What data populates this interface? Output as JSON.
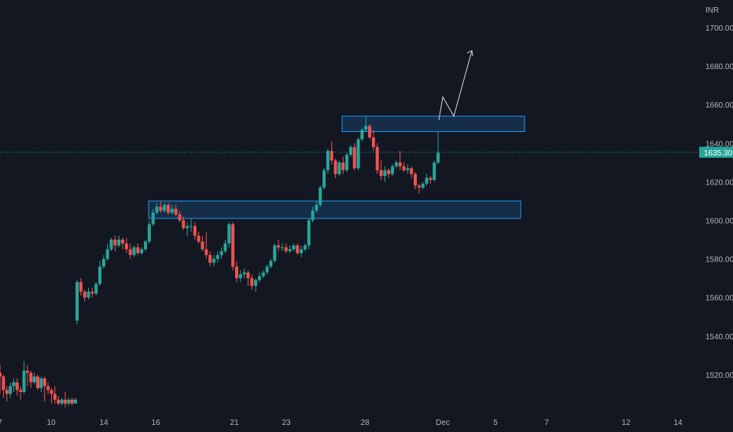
{
  "currency": "INR",
  "last_price": "1635.30",
  "colors": {
    "background": "#131722",
    "up": "#26a69a",
    "down": "#ef5350",
    "zone": "#2196f3",
    "price_line": "#26a69a",
    "arrow": "#d1d4dc"
  },
  "chart_data": {
    "type": "candlestick",
    "y_axis_ticks": [
      "1700.00",
      "1680.00",
      "1660.00",
      "1640.00",
      "1620.00",
      "1600.00",
      "1580.00",
      "1560.00",
      "1540.00",
      "1520.00"
    ],
    "x_axis_ticks": [
      "7",
      "10",
      "14",
      "16",
      "21",
      "23",
      "28",
      "Dec",
      "5",
      "7",
      "12",
      "14"
    ],
    "y_range": [
      1502,
      1714
    ],
    "zones": [
      {
        "name": "resistance-zone",
        "top": 1654,
        "bottom": 1646
      },
      {
        "name": "support-zone",
        "top": 1610,
        "bottom": 1601
      }
    ],
    "projection_path": [
      1652,
      1664,
      1654,
      1688
    ],
    "candles": [
      [
        1521,
        1519,
        1525,
        1510
      ],
      [
        1519,
        1512,
        1520,
        1508
      ],
      [
        1512,
        1510,
        1514,
        1506
      ],
      [
        1510,
        1514,
        1516,
        1508
      ],
      [
        1514,
        1516,
        1518,
        1511
      ],
      [
        1516,
        1512,
        1518,
        1509
      ],
      [
        1512,
        1511,
        1514,
        1507
      ],
      [
        1511,
        1522,
        1527,
        1510
      ],
      [
        1522,
        1521,
        1525,
        1514
      ],
      [
        1521,
        1516,
        1522,
        1513
      ],
      [
        1516,
        1519,
        1521,
        1515
      ],
      [
        1519,
        1513,
        1520,
        1512
      ],
      [
        1513,
        1518,
        1519,
        1511
      ],
      [
        1518,
        1514,
        1519,
        1506
      ],
      [
        1514,
        1512,
        1516,
        1510
      ],
      [
        1512,
        1510,
        1513,
        1505
      ],
      [
        1510,
        1507,
        1514,
        1505
      ],
      [
        1507,
        1505,
        1509,
        1504
      ],
      [
        1505,
        1507,
        1508,
        1504
      ],
      [
        1507,
        1505,
        1511,
        1503
      ],
      [
        1505,
        1507,
        1508,
        1504
      ],
      [
        1507,
        1505,
        1508,
        1504
      ],
      [
        1505,
        1507,
        1508,
        1505
      ],
      [
        1548,
        1568,
        1569,
        1546
      ],
      [
        1568,
        1563,
        1570,
        1561
      ],
      [
        1563,
        1560,
        1564,
        1558
      ],
      [
        1560,
        1563,
        1565,
        1559
      ],
      [
        1563,
        1562,
        1565,
        1560
      ],
      [
        1562,
        1567,
        1568,
        1561
      ],
      [
        1567,
        1576,
        1579,
        1566
      ],
      [
        1576,
        1580,
        1582,
        1575
      ],
      [
        1580,
        1585,
        1588,
        1579
      ],
      [
        1585,
        1590,
        1591,
        1584
      ],
      [
        1590,
        1587,
        1592,
        1584
      ],
      [
        1587,
        1590,
        1592,
        1586
      ],
      [
        1590,
        1588,
        1591,
        1585
      ],
      [
        1588,
        1585,
        1591,
        1583
      ],
      [
        1585,
        1582,
        1588,
        1580
      ],
      [
        1582,
        1586,
        1587,
        1581
      ],
      [
        1586,
        1583,
        1588,
        1582
      ],
      [
        1583,
        1585,
        1586,
        1582
      ],
      [
        1585,
        1589,
        1590,
        1584
      ],
      [
        1589,
        1598,
        1600,
        1588
      ],
      [
        1598,
        1604,
        1606,
        1597
      ],
      [
        1604,
        1607,
        1609,
        1603
      ],
      [
        1607,
        1605,
        1610,
        1604
      ],
      [
        1605,
        1608,
        1609,
        1604
      ],
      [
        1608,
        1604,
        1609,
        1603
      ],
      [
        1604,
        1606,
        1608,
        1603
      ],
      [
        1606,
        1603,
        1608,
        1602
      ],
      [
        1603,
        1600,
        1605,
        1599
      ],
      [
        1600,
        1596,
        1602,
        1595
      ],
      [
        1596,
        1597,
        1599,
        1592
      ],
      [
        1597,
        1597,
        1601,
        1594
      ],
      [
        1597,
        1592,
        1599,
        1590
      ],
      [
        1592,
        1589,
        1594,
        1588
      ],
      [
        1589,
        1585,
        1592,
        1584
      ],
      [
        1585,
        1582,
        1594,
        1580
      ],
      [
        1582,
        1578,
        1584,
        1576
      ],
      [
        1578,
        1580,
        1582,
        1576
      ],
      [
        1580,
        1582,
        1584,
        1578
      ],
      [
        1582,
        1584,
        1586,
        1580
      ],
      [
        1584,
        1588,
        1590,
        1583
      ],
      [
        1588,
        1598,
        1599,
        1586
      ],
      [
        1598,
        1576,
        1599,
        1574
      ],
      [
        1576,
        1570,
        1579,
        1568
      ],
      [
        1570,
        1572,
        1574,
        1568
      ],
      [
        1572,
        1573,
        1575,
        1570
      ],
      [
        1573,
        1570,
        1574,
        1566
      ],
      [
        1570,
        1566,
        1572,
        1564
      ],
      [
        1566,
        1569,
        1570,
        1563
      ],
      [
        1569,
        1571,
        1573,
        1568
      ],
      [
        1571,
        1573,
        1574,
        1570
      ],
      [
        1573,
        1576,
        1577,
        1572
      ],
      [
        1576,
        1579,
        1580,
        1575
      ],
      [
        1579,
        1587,
        1588,
        1578
      ],
      [
        1587,
        1586,
        1590,
        1584
      ],
      [
        1586,
        1586,
        1588,
        1584
      ],
      [
        1586,
        1584,
        1588,
        1583
      ],
      [
        1584,
        1585,
        1587,
        1583
      ],
      [
        1585,
        1587,
        1588,
        1584
      ],
      [
        1587,
        1583,
        1588,
        1582
      ],
      [
        1583,
        1585,
        1587,
        1581
      ],
      [
        1585,
        1587,
        1588,
        1584
      ],
      [
        1587,
        1600,
        1601,
        1585
      ],
      [
        1600,
        1605,
        1607,
        1599
      ],
      [
        1605,
        1608,
        1610,
        1604
      ],
      [
        1608,
        1617,
        1618,
        1607
      ],
      [
        1617,
        1626,
        1627,
        1616
      ],
      [
        1626,
        1636,
        1637,
        1624
      ],
      [
        1636,
        1631,
        1641,
        1629
      ],
      [
        1631,
        1624,
        1632,
        1622
      ],
      [
        1624,
        1630,
        1631,
        1623
      ],
      [
        1630,
        1626,
        1633,
        1624
      ],
      [
        1626,
        1634,
        1635,
        1625
      ],
      [
        1634,
        1638,
        1639,
        1633
      ],
      [
        1638,
        1627,
        1640,
        1626
      ],
      [
        1627,
        1642,
        1643,
        1626
      ],
      [
        1642,
        1647,
        1648,
        1641
      ],
      [
        1647,
        1649,
        1654,
        1646
      ],
      [
        1649,
        1643,
        1650,
        1642
      ],
      [
        1643,
        1638,
        1647,
        1636
      ],
      [
        1638,
        1626,
        1640,
        1624
      ],
      [
        1626,
        1623,
        1631,
        1621
      ],
      [
        1623,
        1626,
        1628,
        1620
      ],
      [
        1626,
        1624,
        1627,
        1622
      ],
      [
        1624,
        1628,
        1629,
        1623
      ],
      [
        1628,
        1630,
        1631,
        1627
      ],
      [
        1630,
        1628,
        1636,
        1626
      ],
      [
        1628,
        1626,
        1630,
        1625
      ],
      [
        1626,
        1627,
        1629,
        1624
      ],
      [
        1627,
        1624,
        1628,
        1622
      ],
      [
        1624,
        1618,
        1625,
        1616
      ],
      [
        1618,
        1617,
        1619,
        1614
      ],
      [
        1617,
        1619,
        1620,
        1616
      ],
      [
        1619,
        1622,
        1624,
        1618
      ],
      [
        1622,
        1621,
        1623,
        1619
      ],
      [
        1621,
        1630,
        1631,
        1620
      ],
      [
        1630,
        1635,
        1646,
        1629
      ]
    ]
  }
}
